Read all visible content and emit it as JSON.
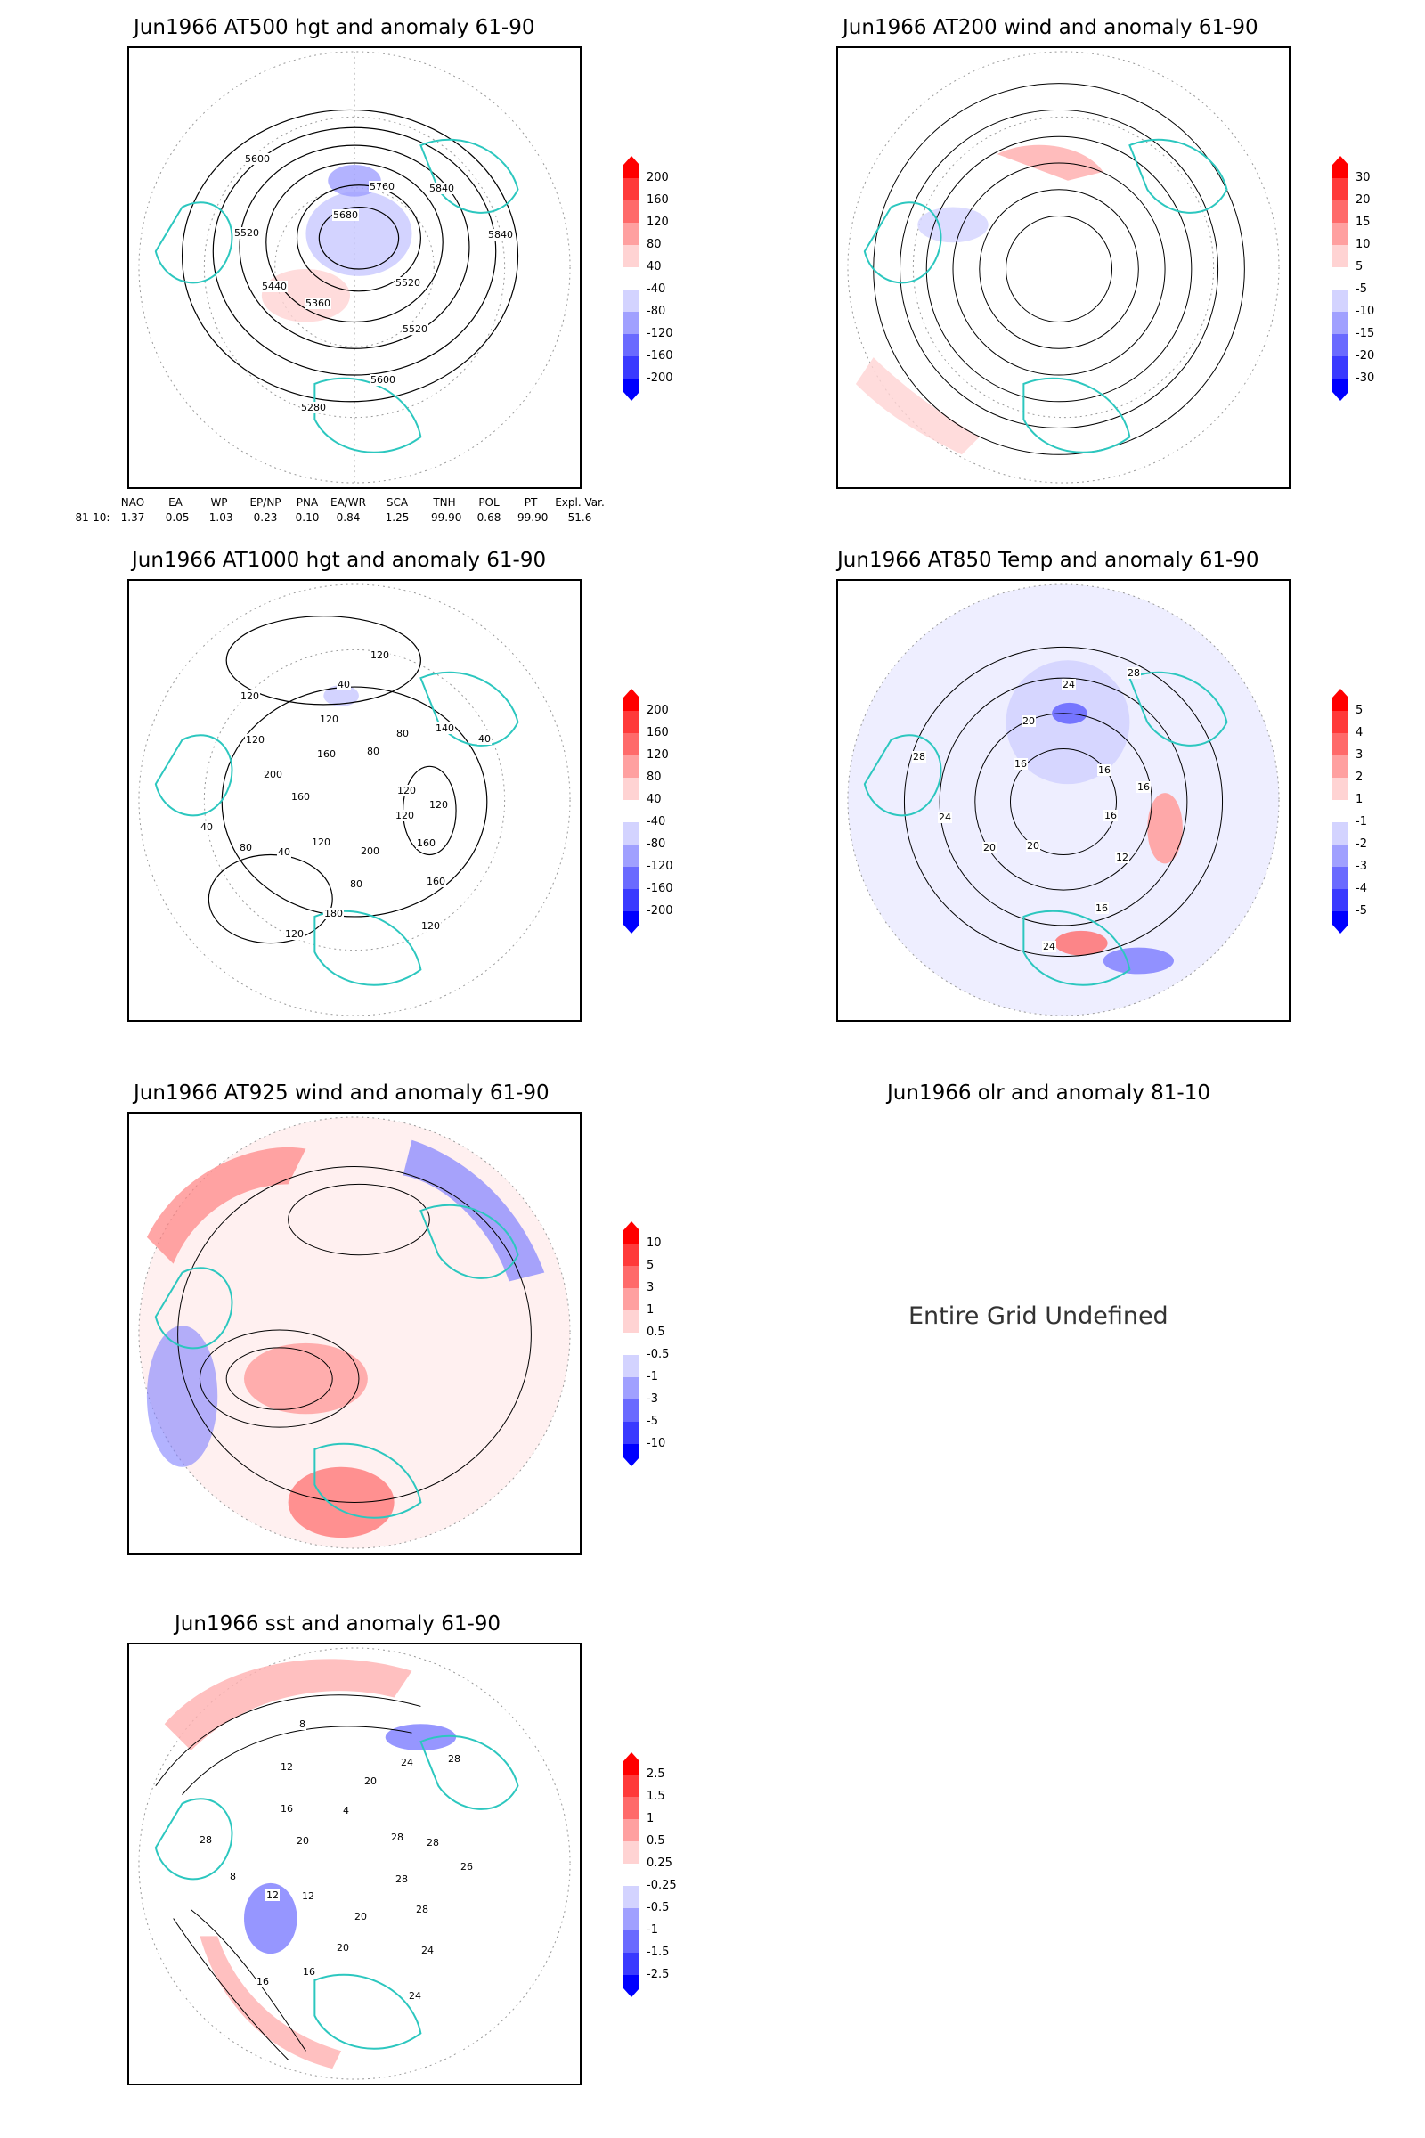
{
  "panels": [
    {
      "id": "p500",
      "title": "Jun1966 AT500 hgt and anomaly 61-90",
      "colorbar": [
        "200",
        "160",
        "120",
        "80",
        "40",
        "-40",
        "-80",
        "-120",
        "-160",
        "-200"
      ],
      "contour_labels": [
        "5520",
        "5520",
        "5600",
        "5280",
        "5360",
        "5440",
        "5520",
        "5600",
        "5680",
        "5760",
        "5840",
        "5840"
      ]
    },
    {
      "id": "p200",
      "title": "Jun1966 AT200 wind and anomaly 61-90",
      "colorbar": [
        "30",
        "20",
        "15",
        "10",
        "5",
        "-5",
        "-10",
        "-15",
        "-20",
        "-30"
      ]
    },
    {
      "id": "p1000",
      "title": "Jun1966 AT1000 hgt and anomaly 61-90",
      "colorbar": [
        "200",
        "160",
        "120",
        "80",
        "40",
        "-40",
        "-80",
        "-120",
        "-160",
        "-200"
      ],
      "contour_labels": [
        "120",
        "160",
        "160",
        "120",
        "200",
        "80",
        "180",
        "120",
        "120",
        "40",
        "80",
        "40",
        "160",
        "200",
        "120",
        "120",
        "160",
        "120",
        "40",
        "120",
        "80",
        "80",
        "140",
        "40",
        "120",
        "120"
      ]
    },
    {
      "id": "p850",
      "title": "Jun1966 AT850 Temp and anomaly 61-90",
      "colorbar": [
        "5",
        "4",
        "3",
        "2",
        "1",
        "-1",
        "-2",
        "-3",
        "-4",
        "-5"
      ],
      "contour_labels": [
        "16",
        "12",
        "16",
        "24",
        "20",
        "20",
        "24",
        "28",
        "16",
        "20",
        "24",
        "28",
        "16",
        "16"
      ]
    },
    {
      "id": "p925",
      "title": "Jun1966 AT925 wind and anomaly 61-90",
      "colorbar": [
        "10",
        "5",
        "3",
        "1",
        "0.5",
        "-0.5",
        "-1",
        "-3",
        "-5",
        "-10"
      ]
    },
    {
      "id": "polr",
      "title": "Jun1966 olr and anomaly 81-10",
      "message": "Entire Grid Undefined"
    },
    {
      "id": "psst",
      "title": "Jun1966 sst and anomaly 61-90",
      "colorbar": [
        "2.5",
        "1.5",
        "1",
        "0.5",
        "0.25",
        "-0.25",
        "-0.5",
        "-1",
        "-1.5",
        "-2.5"
      ],
      "contour_labels": [
        "28",
        "28",
        "24",
        "24",
        "20",
        "20",
        "16",
        "16",
        "12",
        "12",
        "8",
        "28",
        "20",
        "16",
        "12",
        "8",
        "4",
        "20",
        "24",
        "28",
        "28",
        "28",
        "26"
      ]
    }
  ],
  "index_table": {
    "headers": [
      "NAO",
      "EA",
      "WP",
      "EP/NP",
      "PNA",
      "EA/WR",
      "SCA",
      "TNH",
      "POL",
      "PT",
      "Expl. Var."
    ],
    "row_label": "81-10:",
    "values": [
      "1.37",
      "-0.05",
      "-1.03",
      "0.23",
      "0.10",
      "0.84",
      "1.25",
      "-99.90",
      "0.68",
      "-99.90",
      "51.6"
    ]
  },
  "colors": {
    "land_outline": "#2cc7bf",
    "contour": "#000000",
    "positive_scale": [
      "#ff0000",
      "#ff3a3a",
      "#ff6a6a",
      "#ffa0a0",
      "#ffd3d3"
    ],
    "negative_scale": [
      "#d3d3ff",
      "#a0a0ff",
      "#6a6aff",
      "#3a3aff",
      "#0000ff"
    ]
  }
}
